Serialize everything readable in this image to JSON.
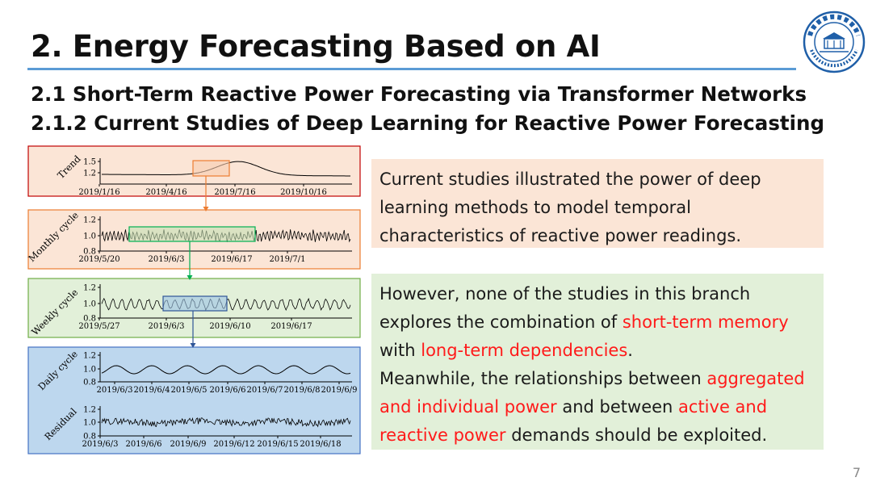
{
  "slide": {
    "title": "2. Energy Forecasting Based on AI",
    "subtitle1": "2.1 Short-Term Reactive Power Forecasting via Transformer Networks",
    "subtitle2": "2.1.2 Current Studies of Deep Learning for Reactive Power Forecasting",
    "page_number": "7",
    "accent_color": "#5b9bd5"
  },
  "logo": {
    "alt": "university-seal",
    "icon": "university-seal-icon"
  },
  "decomposition_figure": {
    "panels": [
      {
        "label": "Trend",
        "yticks": [
          "1.5",
          "1.2"
        ],
        "xticks": [
          "2019/1/16",
          "2019/4/16",
          "2019/7/16",
          "2019/10/16"
        ],
        "bg": "#fbe5d6",
        "border": "#c00000"
      },
      {
        "label": "Monthly cycle",
        "yticks": [
          "1.2",
          "1.0",
          "0.8"
        ],
        "xticks": [
          "2019/5/20",
          "2019/6/3",
          "2019/6/17",
          "2019/7/1"
        ],
        "bg": "#fbe5d6",
        "border": "#ed7d31"
      },
      {
        "label": "Weekly cycle",
        "yticks": [
          "1.2",
          "1.0",
          "0.8"
        ],
        "xticks": [
          "2019/5/27",
          "2019/6/3",
          "2019/6/10",
          "2019/6/17"
        ],
        "bg": "#e2f0d9",
        "border": "#70ad47"
      },
      {
        "label": "Daily cycle",
        "yticks": [
          "1.2",
          "1.0",
          "0.8"
        ],
        "xticks": [
          "2019/6/3",
          "2019/6/4",
          "2019/6/5",
          "2019/6/6",
          "2019/6/7",
          "2019/6/8",
          "2019/6/9"
        ],
        "bg": "#bdd7ee",
        "border": "#4472c4"
      },
      {
        "label": "Residual",
        "yticks": [
          "1.2",
          "1.0",
          "0.8"
        ],
        "xticks": [
          "2019/6/3",
          "2019/6/6",
          "2019/6/9",
          "2019/6/12",
          "2019/6/15",
          "2019/6/18"
        ],
        "bg": "#bdd7ee",
        "border": "#4472c4"
      }
    ]
  },
  "box1": {
    "text": "Current studies illustrated the power of deep learning methods to model temporal characteristics of reactive power readings."
  },
  "box2": {
    "t1": "However, none of the studies in this branch explores the combination of ",
    "h1": "short-term memory",
    "t2": " with ",
    "h2": "long-term dependencies",
    "t3": ".",
    "t4": "Meanwhile, the relationships between ",
    "h3": "aggregated and individual power",
    "t5": " and between ",
    "h4": "active and reactive power",
    "t6": " demands should be exploited."
  }
}
